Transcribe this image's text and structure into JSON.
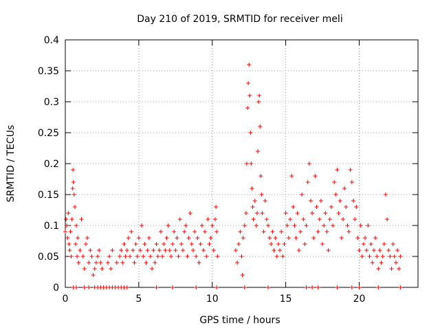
{
  "chart_data": {
    "type": "scatter",
    "title": "Day 210 of 2019, SRMTID for receiver meli",
    "xlabel": "GPS time / hours",
    "ylabel": "SRMTID / TECUs",
    "xlim": [
      0,
      24
    ],
    "ylim": [
      0,
      0.4
    ],
    "x_ticks": [
      0,
      5,
      10,
      15,
      20
    ],
    "x_tick_labels": [
      "0",
      "5",
      "10",
      "15",
      "20"
    ],
    "y_ticks": [
      0,
      0.05,
      0.1,
      0.15,
      0.2,
      0.25,
      0.3,
      0.35,
      0.4
    ],
    "y_tick_labels": [
      "0",
      "0.05",
      "0.1",
      "0.15",
      "0.2",
      "0.25",
      "0.3",
      "0.35",
      "0.4"
    ],
    "grid": true,
    "legend": false,
    "colors": {
      "series": "#ff0000",
      "grid": "#a0a0a0"
    },
    "series": [
      {
        "marker": "plus",
        "points": [
          [
            0.0,
            0.09
          ],
          [
            0.05,
            0.11
          ],
          [
            0.1,
            0.1
          ],
          [
            0.15,
            0.08
          ],
          [
            0.2,
            0.12
          ],
          [
            0.25,
            0.07
          ],
          [
            0.3,
            0.06
          ],
          [
            0.35,
            0.09
          ],
          [
            0.4,
            0.05
          ],
          [
            0.45,
            0.11
          ],
          [
            0.5,
            0.16
          ],
          [
            0.52,
            0.19
          ],
          [
            0.55,
            0.17
          ],
          [
            0.6,
            0.15
          ],
          [
            0.65,
            0.13
          ],
          [
            0.7,
            0.07
          ],
          [
            0.75,
            0.1
          ],
          [
            0.8,
            0.05
          ],
          [
            0.85,
            0.08
          ],
          [
            0.9,
            0.04
          ],
          [
            1.0,
            0.06
          ],
          [
            1.1,
            0.11
          ],
          [
            1.2,
            0.05
          ],
          [
            1.3,
            0.03
          ],
          [
            1.4,
            0.07
          ],
          [
            1.5,
            0.08
          ],
          [
            1.6,
            0.04
          ],
          [
            1.7,
            0.06
          ],
          [
            1.8,
            0.05
          ],
          [
            1.9,
            0.02
          ],
          [
            2.0,
            0.03
          ],
          [
            2.1,
            0.04
          ],
          [
            2.2,
            0.05
          ],
          [
            2.3,
            0.06
          ],
          [
            2.4,
            0.04
          ],
          [
            2.5,
            0.03
          ],
          [
            2.9,
            0.04
          ],
          [
            3.0,
            0.05
          ],
          [
            3.1,
            0.03
          ],
          [
            3.2,
            0.06
          ],
          [
            3.5,
            0.04
          ],
          [
            3.7,
            0.05
          ],
          [
            3.8,
            0.06
          ],
          [
            3.9,
            0.04
          ],
          [
            4.0,
            0.07
          ],
          [
            4.1,
            0.05
          ],
          [
            4.2,
            0.06
          ],
          [
            4.3,
            0.08
          ],
          [
            4.4,
            0.05
          ],
          [
            4.5,
            0.09
          ],
          [
            4.6,
            0.06
          ],
          [
            4.7,
            0.04
          ],
          [
            4.8,
            0.07
          ],
          [
            4.9,
            0.05
          ],
          [
            5.0,
            0.08
          ],
          [
            5.1,
            0.06
          ],
          [
            5.2,
            0.1
          ],
          [
            5.3,
            0.05
          ],
          [
            5.4,
            0.07
          ],
          [
            5.5,
            0.04
          ],
          [
            5.6,
            0.06
          ],
          [
            5.7,
            0.08
          ],
          [
            5.8,
            0.05
          ],
          [
            5.9,
            0.03
          ],
          [
            6.0,
            0.06
          ],
          [
            6.1,
            0.04
          ],
          [
            6.2,
            0.07
          ],
          [
            6.3,
            0.05
          ],
          [
            6.4,
            0.06
          ],
          [
            6.5,
            0.09
          ],
          [
            6.6,
            0.05
          ],
          [
            6.7,
            0.07
          ],
          [
            6.8,
            0.06
          ],
          [
            6.9,
            0.08
          ],
          [
            7.0,
            0.1
          ],
          [
            7.1,
            0.06
          ],
          [
            7.2,
            0.05
          ],
          [
            7.3,
            0.07
          ],
          [
            7.4,
            0.09
          ],
          [
            7.5,
            0.06
          ],
          [
            7.6,
            0.08
          ],
          [
            7.7,
            0.05
          ],
          [
            7.8,
            0.11
          ],
          [
            7.9,
            0.07
          ],
          [
            8.0,
            0.06
          ],
          [
            8.1,
            0.09
          ],
          [
            8.2,
            0.1
          ],
          [
            8.3,
            0.05
          ],
          [
            8.4,
            0.08
          ],
          [
            8.5,
            0.12
          ],
          [
            8.6,
            0.07
          ],
          [
            8.7,
            0.06
          ],
          [
            8.8,
            0.09
          ],
          [
            8.9,
            0.05
          ],
          [
            9.0,
            0.08
          ],
          [
            9.1,
            0.04
          ],
          [
            9.2,
            0.07
          ],
          [
            9.3,
            0.1
          ],
          [
            9.4,
            0.06
          ],
          [
            9.5,
            0.09
          ],
          [
            9.6,
            0.05
          ],
          [
            9.7,
            0.11
          ],
          [
            9.8,
            0.07
          ],
          [
            9.9,
            0.08
          ],
          [
            10.0,
            0.1
          ],
          [
            10.1,
            0.06
          ],
          [
            10.2,
            0.11
          ],
          [
            10.25,
            0.13
          ],
          [
            10.3,
            0.09
          ],
          [
            10.35,
            0.05
          ],
          [
            11.6,
            0.06
          ],
          [
            11.7,
            0.04
          ],
          [
            11.8,
            0.07
          ],
          [
            11.9,
            0.09
          ],
          [
            12.0,
            0.05
          ],
          [
            12.05,
            0.02
          ],
          [
            12.1,
            0.08
          ],
          [
            12.2,
            0.1
          ],
          [
            12.3,
            0.12
          ],
          [
            12.35,
            0.2
          ],
          [
            12.4,
            0.29
          ],
          [
            12.45,
            0.33
          ],
          [
            12.5,
            0.36
          ],
          [
            12.55,
            0.31
          ],
          [
            12.6,
            0.25
          ],
          [
            12.65,
            0.2
          ],
          [
            12.7,
            0.16
          ],
          [
            12.75,
            0.13
          ],
          [
            12.8,
            0.11
          ],
          [
            12.9,
            0.14
          ],
          [
            13.0,
            0.1
          ],
          [
            13.05,
            0.12
          ],
          [
            13.1,
            0.22
          ],
          [
            13.15,
            0.3
          ],
          [
            13.2,
            0.31
          ],
          [
            13.25,
            0.26
          ],
          [
            13.3,
            0.18
          ],
          [
            13.35,
            0.15
          ],
          [
            13.4,
            0.12
          ],
          [
            13.5,
            0.09
          ],
          [
            13.6,
            0.14
          ],
          [
            13.7,
            0.11
          ],
          [
            13.8,
            0.1
          ],
          [
            13.9,
            0.08
          ],
          [
            14.0,
            0.07
          ],
          [
            14.1,
            0.09
          ],
          [
            14.2,
            0.06
          ],
          [
            14.3,
            0.08
          ],
          [
            14.4,
            0.05
          ],
          [
            14.5,
            0.07
          ],
          [
            14.6,
            0.06
          ],
          [
            14.7,
            0.09
          ],
          [
            14.8,
            0.05
          ],
          [
            14.9,
            0.07
          ],
          [
            15.0,
            0.12
          ],
          [
            15.1,
            0.1
          ],
          [
            15.2,
            0.08
          ],
          [
            15.3,
            0.11
          ],
          [
            15.4,
            0.18
          ],
          [
            15.5,
            0.13
          ],
          [
            15.6,
            0.1
          ],
          [
            15.7,
            0.08
          ],
          [
            15.8,
            0.12
          ],
          [
            15.9,
            0.06
          ],
          [
            16.0,
            0.09
          ],
          [
            16.1,
            0.15
          ],
          [
            16.2,
            0.11
          ],
          [
            16.3,
            0.07
          ],
          [
            16.4,
            0.1
          ],
          [
            16.5,
            0.17
          ],
          [
            16.6,
            0.2
          ],
          [
            16.7,
            0.14
          ],
          [
            16.8,
            0.12
          ],
          [
            16.9,
            0.08
          ],
          [
            17.0,
            0.18
          ],
          [
            17.1,
            0.13
          ],
          [
            17.2,
            0.09
          ],
          [
            17.3,
            0.11
          ],
          [
            17.4,
            0.14
          ],
          [
            17.5,
            0.07
          ],
          [
            17.6,
            0.1
          ],
          [
            17.7,
            0.12
          ],
          [
            17.8,
            0.09
          ],
          [
            17.9,
            0.06
          ],
          [
            18.0,
            0.11
          ],
          [
            18.1,
            0.13
          ],
          [
            18.2,
            0.1
          ],
          [
            18.3,
            0.17
          ],
          [
            18.4,
            0.15
          ],
          [
            18.5,
            0.19
          ],
          [
            18.6,
            0.12
          ],
          [
            18.7,
            0.14
          ],
          [
            18.8,
            0.08
          ],
          [
            18.9,
            0.11
          ],
          [
            19.0,
            0.16
          ],
          [
            19.1,
            0.13
          ],
          [
            19.2,
            0.1
          ],
          [
            19.3,
            0.09
          ],
          [
            19.4,
            0.19
          ],
          [
            19.5,
            0.17
          ],
          [
            19.6,
            0.14
          ],
          [
            19.7,
            0.11
          ],
          [
            19.8,
            0.13
          ],
          [
            19.9,
            0.08
          ],
          [
            20.0,
            0.06
          ],
          [
            20.1,
            0.1
          ],
          [
            20.2,
            0.05
          ],
          [
            20.3,
            0.07
          ],
          [
            20.4,
            0.08
          ],
          [
            20.5,
            0.06
          ],
          [
            20.6,
            0.1
          ],
          [
            20.7,
            0.05
          ],
          [
            20.8,
            0.07
          ],
          [
            20.9,
            0.04
          ],
          [
            21.0,
            0.06
          ],
          [
            21.1,
            0.08
          ],
          [
            21.2,
            0.05
          ],
          [
            21.3,
            0.03
          ],
          [
            21.4,
            0.06
          ],
          [
            21.5,
            0.04
          ],
          [
            21.6,
            0.05
          ],
          [
            21.7,
            0.07
          ],
          [
            21.8,
            0.15
          ],
          [
            21.9,
            0.11
          ],
          [
            22.0,
            0.06
          ],
          [
            22.1,
            0.05
          ],
          [
            22.2,
            0.03
          ],
          [
            22.3,
            0.07
          ],
          [
            22.4,
            0.05
          ],
          [
            22.5,
            0.04
          ],
          [
            22.6,
            0.06
          ],
          [
            22.7,
            0.03
          ],
          [
            22.8,
            0.05
          ],
          [
            0.55,
            0.0
          ],
          [
            0.75,
            0.0
          ],
          [
            1.3,
            0.0
          ],
          [
            1.6,
            0.0
          ],
          [
            2.0,
            0.0
          ],
          [
            2.2,
            0.0
          ],
          [
            2.4,
            0.0
          ],
          [
            2.6,
            0.0
          ],
          [
            2.8,
            0.0
          ],
          [
            3.0,
            0.0
          ],
          [
            3.2,
            0.0
          ],
          [
            3.4,
            0.0
          ],
          [
            3.6,
            0.0
          ],
          [
            3.8,
            0.0
          ],
          [
            4.0,
            0.0
          ],
          [
            4.2,
            0.0
          ],
          [
            6.2,
            0.0
          ],
          [
            7.3,
            0.0
          ],
          [
            8.9,
            0.0
          ],
          [
            10.3,
            0.0
          ],
          [
            12.2,
            0.0
          ],
          [
            13.8,
            0.0
          ],
          [
            16.4,
            0.0
          ],
          [
            16.8,
            0.0
          ],
          [
            17.2,
            0.0
          ],
          [
            18.5,
            0.0
          ],
          [
            19.5,
            0.0
          ],
          [
            20.0,
            0.0
          ],
          [
            21.3,
            0.0
          ],
          [
            22.8,
            0.0
          ]
        ]
      }
    ]
  }
}
